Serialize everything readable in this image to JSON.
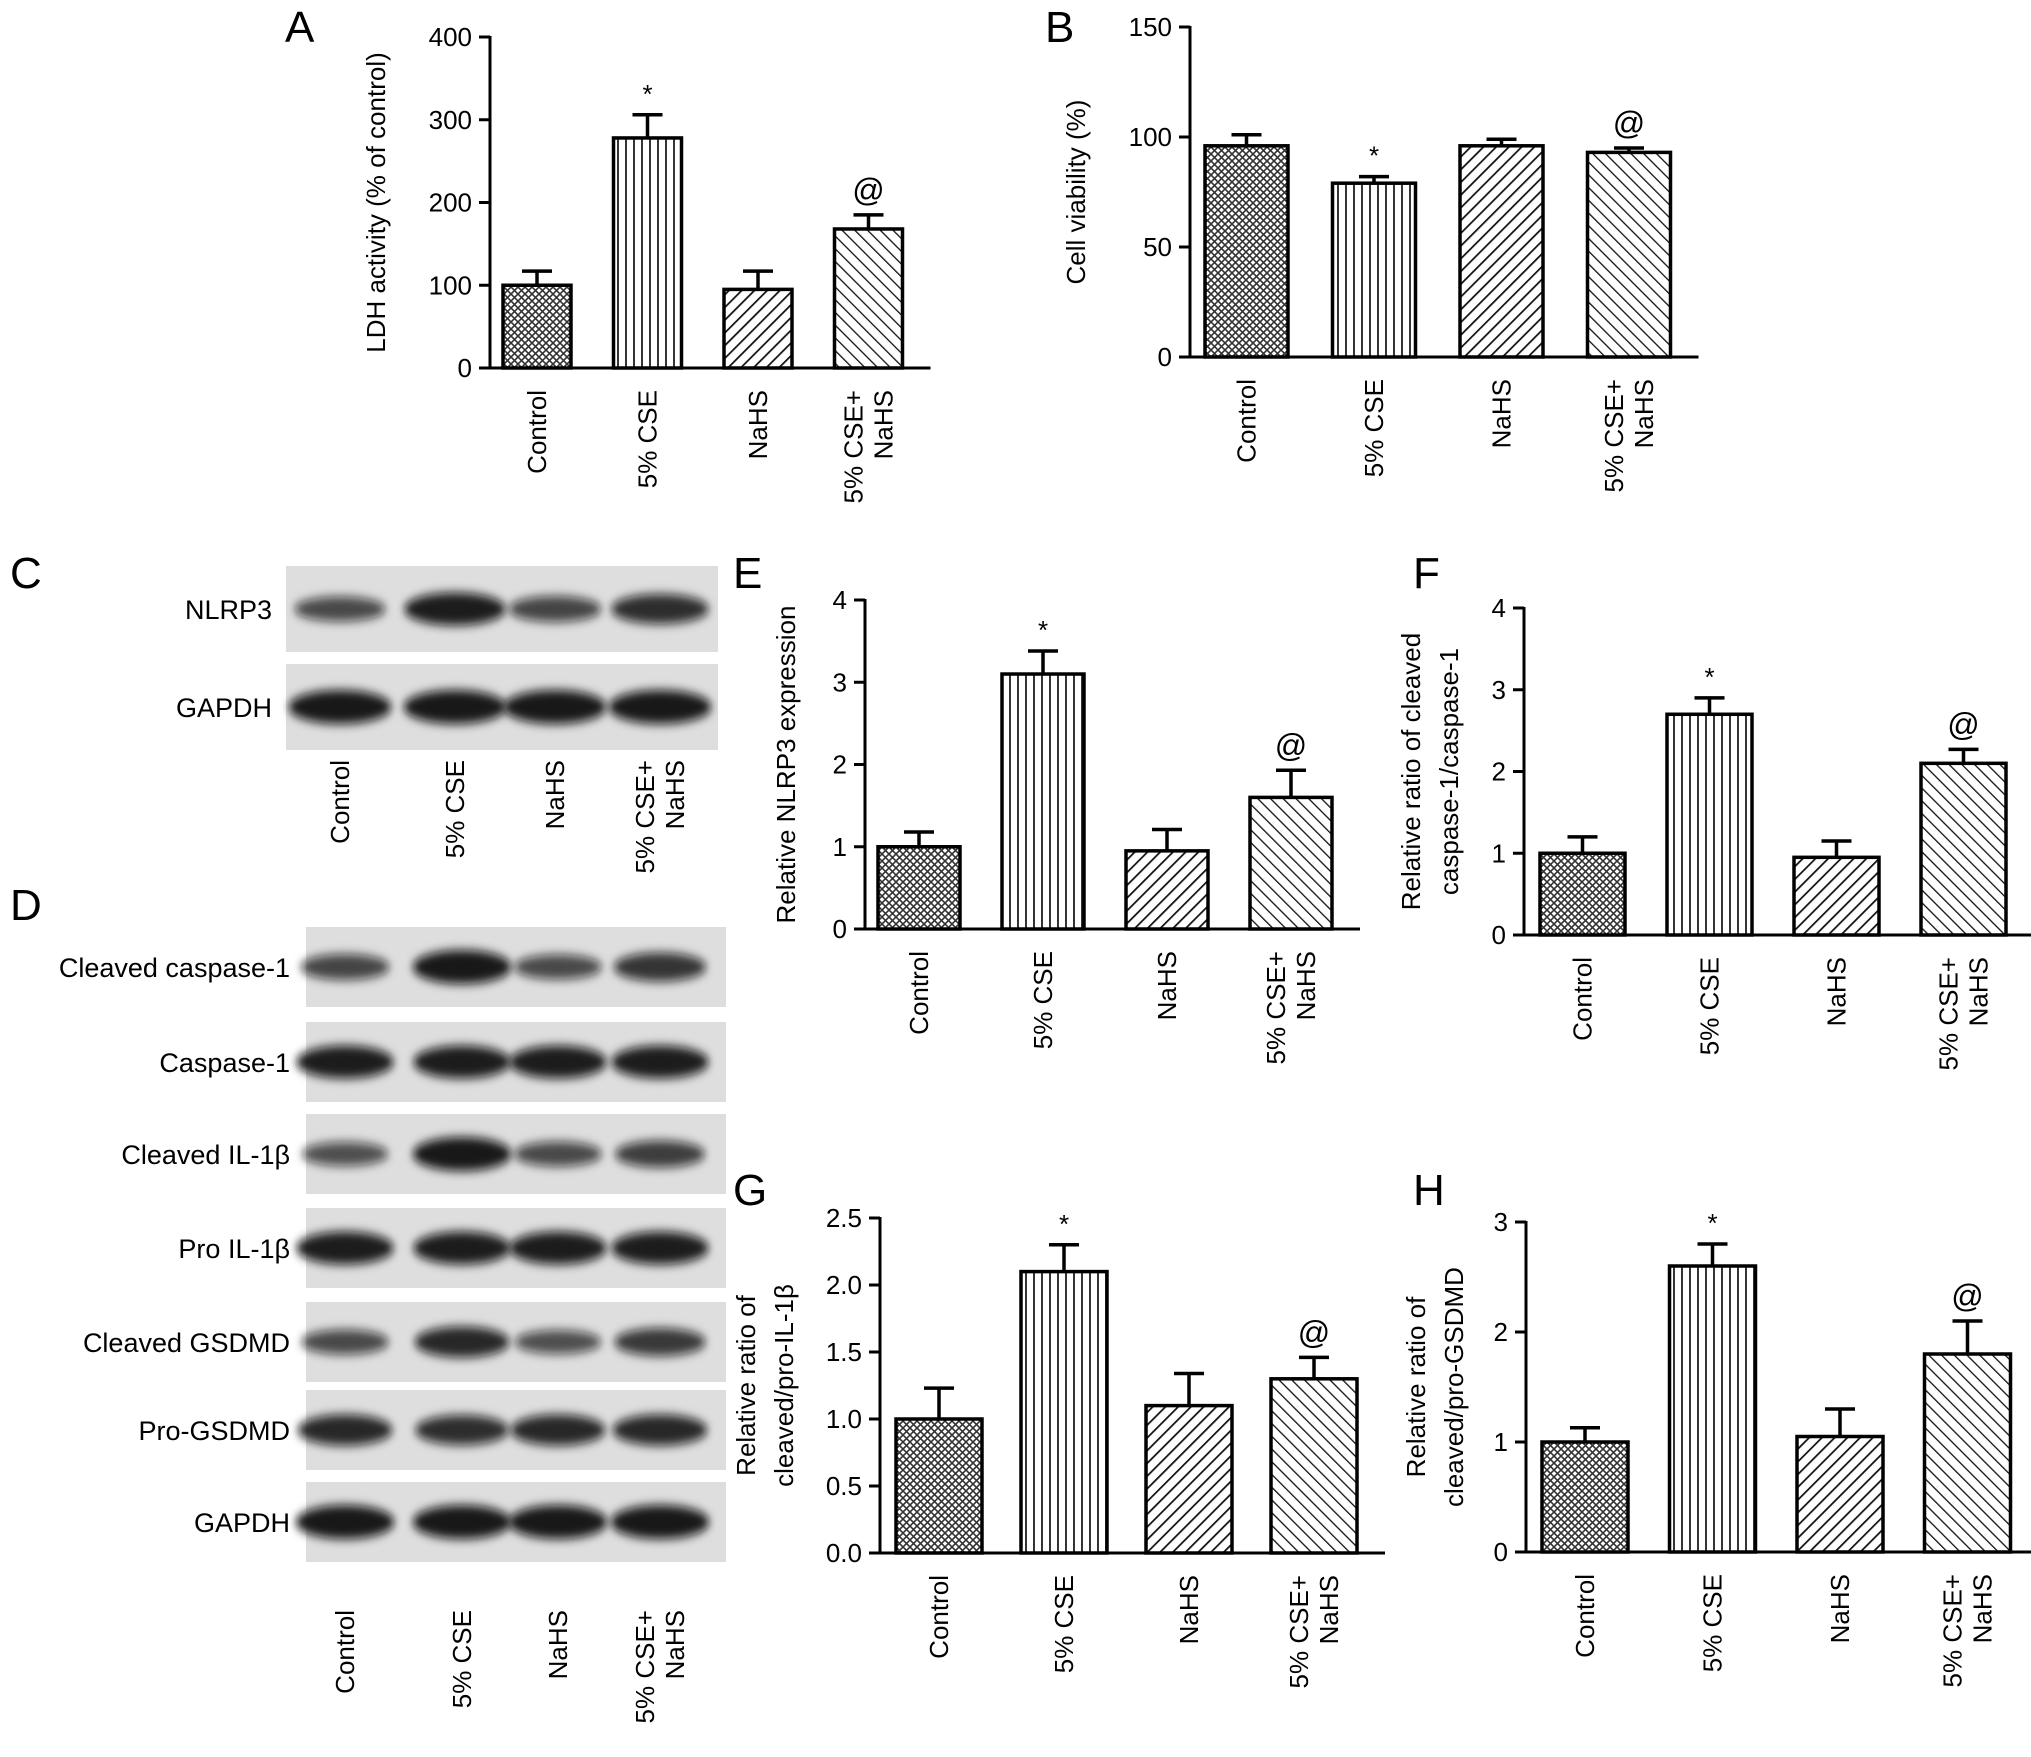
{
  "figure": {
    "chart_data": [
      {
        "panel": "A",
        "type": "bar",
        "categories": [
          "Control",
          "5% CSE",
          "NaHS",
          "5% CSE+ NaHS"
        ],
        "values": [
          100,
          278,
          95,
          168
        ],
        "errors": [
          17,
          28,
          22,
          17
        ],
        "marks": [
          "",
          "*",
          "",
          "@"
        ],
        "ylabel": "LDH activity (% of control)",
        "ylim": [
          0,
          400
        ],
        "yticks": [
          "0",
          "100",
          "200",
          "300",
          "400"
        ]
      },
      {
        "panel": "B",
        "type": "bar",
        "categories": [
          "Control",
          "5% CSE",
          "NaHS",
          "5% CSE+ NaHS"
        ],
        "values": [
          96,
          79,
          96,
          93
        ],
        "errors": [
          5,
          3,
          3,
          2
        ],
        "marks": [
          "",
          "*",
          "",
          "@"
        ],
        "ylabel": "Cell viability (%)",
        "ylim": [
          0,
          150
        ],
        "yticks": [
          "0",
          "50",
          "100",
          "150"
        ]
      },
      {
        "panel": "E",
        "type": "bar",
        "categories": [
          "Control",
          "5% CSE",
          "NaHS",
          "5% CSE+ NaHS"
        ],
        "values": [
          1.0,
          3.1,
          0.95,
          1.6
        ],
        "errors": [
          0.18,
          0.28,
          0.26,
          0.33
        ],
        "marks": [
          "",
          "*",
          "",
          "@"
        ],
        "ylabel": "Relative NLRP3 expression",
        "ylim": [
          0,
          4
        ],
        "yticks": [
          "0",
          "1",
          "2",
          "3",
          "4"
        ]
      },
      {
        "panel": "F",
        "type": "bar",
        "categories": [
          "Control",
          "5% CSE",
          "NaHS",
          "5% CSE+ NaHS"
        ],
        "values": [
          1.0,
          2.7,
          0.95,
          2.1
        ],
        "errors": [
          0.2,
          0.2,
          0.2,
          0.17
        ],
        "marks": [
          "",
          "*",
          "",
          "@"
        ],
        "ylabel": "Relative ratio of cleaved caspase-1/caspase-1",
        "ylabel_lines": [
          "Relative ratio of cleaved",
          "caspase-1/caspase-1"
        ],
        "ylim": [
          0,
          4
        ],
        "yticks": [
          "0",
          "1",
          "2",
          "3",
          "4"
        ]
      },
      {
        "panel": "G",
        "type": "bar",
        "categories": [
          "Control",
          "5% CSE",
          "NaHS",
          "5% CSE+ NaHS"
        ],
        "values": [
          1.0,
          2.1,
          1.1,
          1.3
        ],
        "errors": [
          0.23,
          0.2,
          0.24,
          0.16
        ],
        "marks": [
          "",
          "*",
          "",
          "@"
        ],
        "ylabel": "Relative ratio of cleaved/pro-IL-1β",
        "ylabel_lines": [
          "Relative ratio of",
          "cleaved/pro-IL-1β"
        ],
        "ylim": [
          0,
          2.5
        ],
        "yticks": [
          "0.0",
          "0.5",
          "1.0",
          "1.5",
          "2.0",
          "2.5"
        ]
      },
      {
        "panel": "H",
        "type": "bar",
        "categories": [
          "Control",
          "5% CSE",
          "NaHS",
          "5% CSE+ NaHS"
        ],
        "values": [
          1.0,
          2.6,
          1.05,
          1.8
        ],
        "errors": [
          0.13,
          0.2,
          0.25,
          0.3
        ],
        "marks": [
          "",
          "*",
          "",
          "@"
        ],
        "ylabel": "Relative ratio of cleaved/pro-GSDMD",
        "ylabel_lines": [
          "Relative ratio of",
          "cleaved/pro-GSDMD"
        ],
        "ylim": [
          0,
          3
        ],
        "yticks": [
          "0",
          "1",
          "2",
          "3"
        ]
      }
    ],
    "blots": [
      {
        "panel": "C",
        "rows": [
          "NLRP3",
          "GAPDH"
        ],
        "lanes": [
          "Control",
          "5% CSE",
          "NaHS",
          "5% CSE+ NaHS"
        ],
        "band_intensity": [
          [
            0.55,
            0.95,
            0.6,
            0.8
          ],
          [
            1.0,
            1.0,
            1.0,
            1.0
          ]
        ]
      },
      {
        "panel": "D",
        "rows": [
          "Cleaved caspase-1",
          "Caspase-1",
          "Cleaved IL-1β",
          "Pro IL-1β",
          "Cleaved GSDMD",
          "Pro-GSDMD",
          "GAPDH"
        ],
        "lanes": [
          "Control",
          "5% CSE",
          "NaHS",
          "5% CSE+ NaHS"
        ],
        "band_intensity": [
          [
            0.6,
            1.0,
            0.55,
            0.75
          ],
          [
            0.95,
            0.95,
            0.95,
            0.95
          ],
          [
            0.5,
            1.0,
            0.55,
            0.65
          ],
          [
            0.95,
            0.95,
            0.95,
            0.95
          ],
          [
            0.55,
            0.85,
            0.5,
            0.7
          ],
          [
            0.85,
            0.8,
            0.85,
            0.85
          ],
          [
            1.0,
            1.0,
            1.0,
            1.0
          ]
        ]
      }
    ]
  }
}
